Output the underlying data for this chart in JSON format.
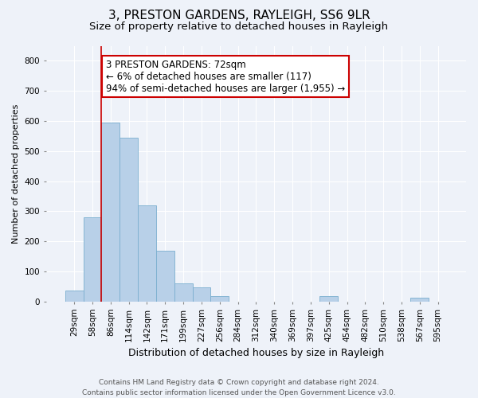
{
  "title1": "3, PRESTON GARDENS, RAYLEIGH, SS6 9LR",
  "title2": "Size of property relative to detached houses in Rayleigh",
  "xlabel": "Distribution of detached houses by size in Rayleigh",
  "ylabel": "Number of detached properties",
  "categories": [
    "29sqm",
    "58sqm",
    "86sqm",
    "114sqm",
    "142sqm",
    "171sqm",
    "199sqm",
    "227sqm",
    "256sqm",
    "284sqm",
    "312sqm",
    "340sqm",
    "369sqm",
    "397sqm",
    "425sqm",
    "454sqm",
    "482sqm",
    "510sqm",
    "538sqm",
    "567sqm",
    "595sqm"
  ],
  "values": [
    37,
    280,
    595,
    545,
    320,
    170,
    60,
    47,
    18,
    0,
    0,
    0,
    0,
    0,
    17,
    0,
    0,
    0,
    0,
    14,
    0
  ],
  "bar_color": "#b8d0e8",
  "bar_edge_color": "#7aaecf",
  "annotation_text": "3 PRESTON GARDENS: 72sqm\n← 6% of detached houses are smaller (117)\n94% of semi-detached houses are larger (1,955) →",
  "annotation_box_facecolor": "#ffffff",
  "annotation_box_edgecolor": "#cc0000",
  "vline_color": "#cc0000",
  "vline_x": 1.5,
  "ylim": [
    0,
    850
  ],
  "yticks": [
    0,
    100,
    200,
    300,
    400,
    500,
    600,
    700,
    800
  ],
  "footer": "Contains HM Land Registry data © Crown copyright and database right 2024.\nContains public sector information licensed under the Open Government Licence v3.0.",
  "bg_color": "#eef2f9",
  "grid_color": "#ffffff",
  "title1_fontsize": 11,
  "title2_fontsize": 9.5,
  "xlabel_fontsize": 9,
  "ylabel_fontsize": 8,
  "tick_fontsize": 7.5,
  "footer_fontsize": 6.5,
  "annotation_fontsize": 8.5
}
